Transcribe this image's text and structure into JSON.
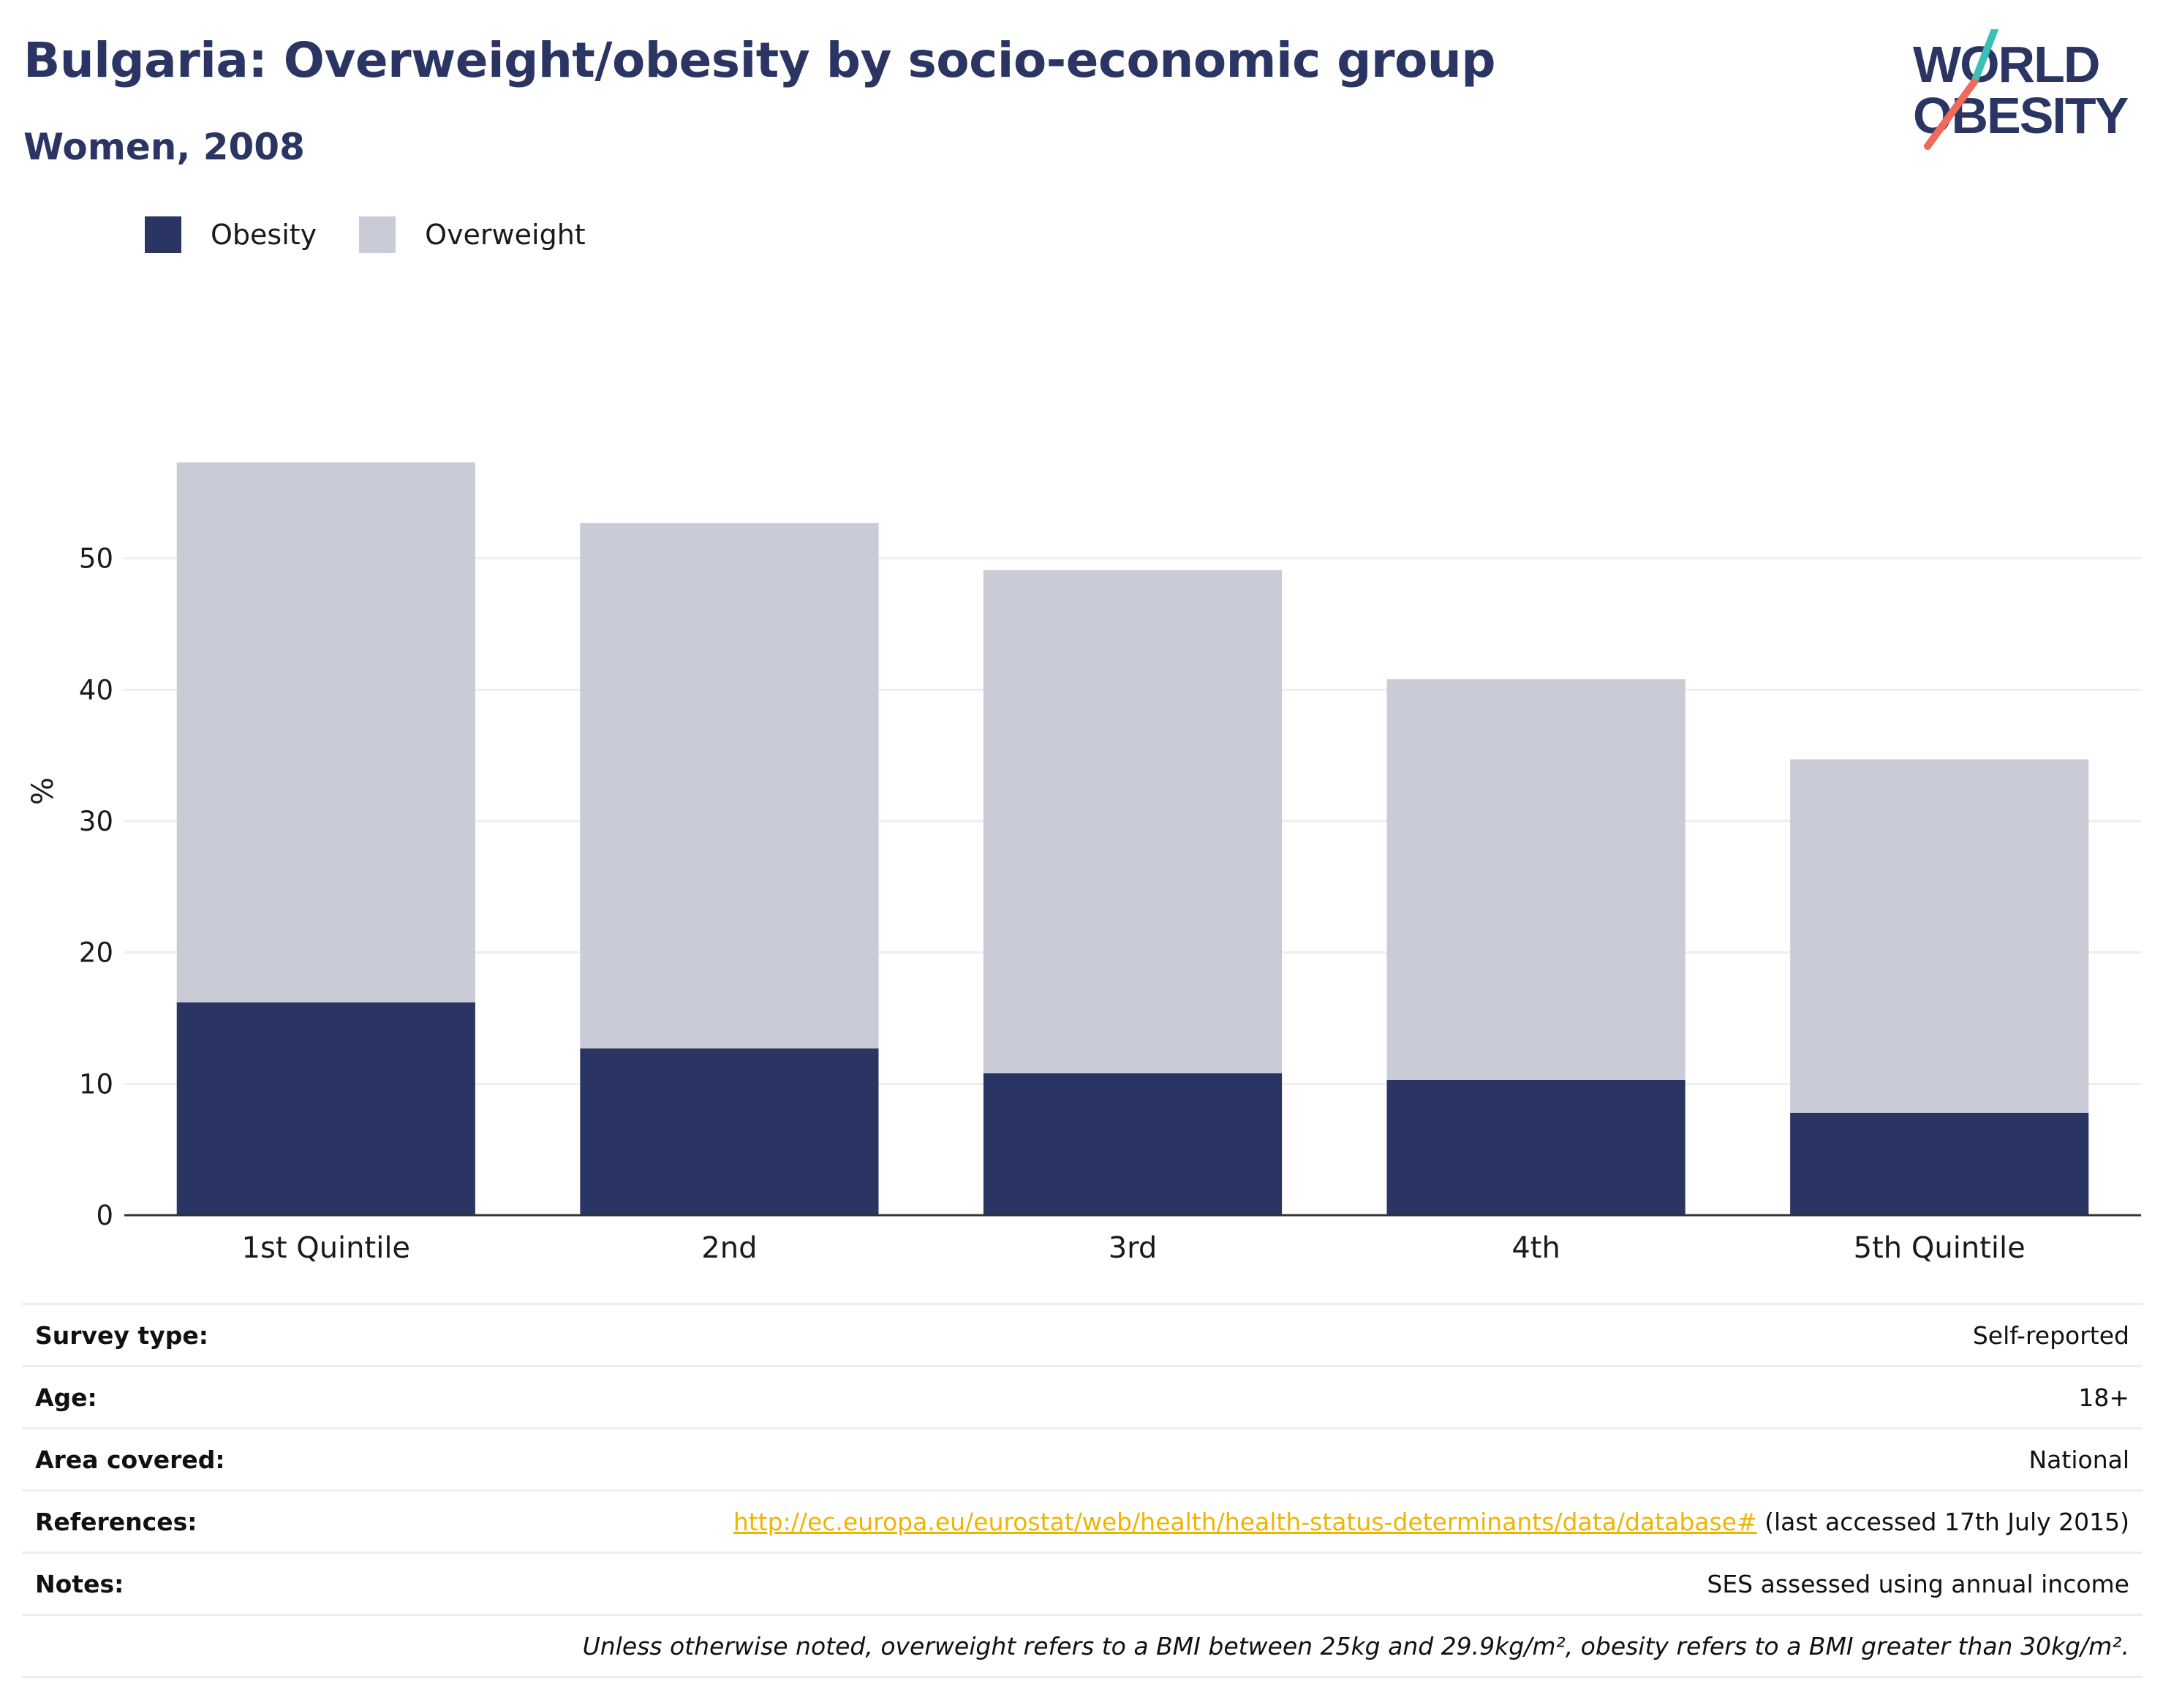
{
  "header": {
    "title": "Bulgaria: Overweight/obesity by socio-economic group",
    "subtitle": "Women, 2008"
  },
  "logo": {
    "line1": "WORLD",
    "line2": "OBESITY"
  },
  "colors": {
    "obesity": "#2a3563",
    "overweight": "#c9cbd7",
    "title": "#2a3563",
    "link": "#f0b400",
    "logo_teal": "#3bbfb6",
    "logo_coral": "#f06a5a"
  },
  "chart_data": {
    "type": "bar",
    "stacked": true,
    "categories": [
      "1st Quintile",
      "2nd",
      "3rd",
      "4th",
      "5th Quintile"
    ],
    "series": [
      {
        "name": "Obesity",
        "values": [
          16.2,
          12.7,
          10.8,
          10.3,
          7.8
        ]
      },
      {
        "name": "Overweight",
        "values": [
          41.1,
          40.0,
          38.3,
          30.5,
          26.9
        ]
      }
    ],
    "ylabel": "%",
    "xlabel": "",
    "ylim": [
      0,
      60
    ],
    "yticks": [
      0,
      10,
      20,
      30,
      40,
      50
    ],
    "grid": true,
    "legend_position": "top-left"
  },
  "meta": {
    "survey_type_label": "Survey type:",
    "survey_type": "Self-reported",
    "age_label": "Age:",
    "age": "18+",
    "area_label": "Area covered:",
    "area": "National",
    "references_label": "References:",
    "references_link": "http://ec.europa.eu/eurostat/web/health/health-status-determinants/data/database#",
    "references_suffix": "(last accessed 17th July 2015)",
    "notes_label": "Notes:",
    "notes": "SES assessed using annual income",
    "definition": "Unless otherwise noted, overweight refers to a BMI between 25kg and 29.9kg/m², obesity refers to a BMI greater than 30kg/m²."
  }
}
